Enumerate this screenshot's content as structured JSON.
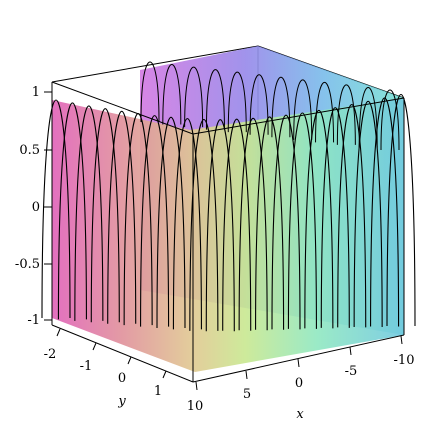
{
  "chart_data": {
    "type": "surface3d",
    "title": "",
    "function_shape": "oscillating surface with many ridges along x (about 11 crests), amplitude range -1 to 1, modulated along y",
    "axes": {
      "z": {
        "label": "",
        "ticks": [
          "-1",
          "-0.5",
          "0",
          "0.5",
          "1"
        ],
        "range": [
          -1,
          1
        ]
      },
      "y": {
        "label": "y",
        "ticks": [
          "-2",
          "-1",
          "0",
          "1"
        ],
        "range": [
          -2,
          2
        ]
      },
      "x": {
        "label": "x",
        "ticks": [
          "10",
          "5",
          "0",
          "-5",
          "-10"
        ],
        "range": [
          -10,
          10
        ]
      }
    },
    "box": true,
    "grid": false,
    "colormap": [
      "#e060c0",
      "#e08098",
      "#d8c080",
      "#c0e080",
      "#80e0b0",
      "#80d0e8",
      "#8090e8",
      "#9060d8"
    ]
  }
}
